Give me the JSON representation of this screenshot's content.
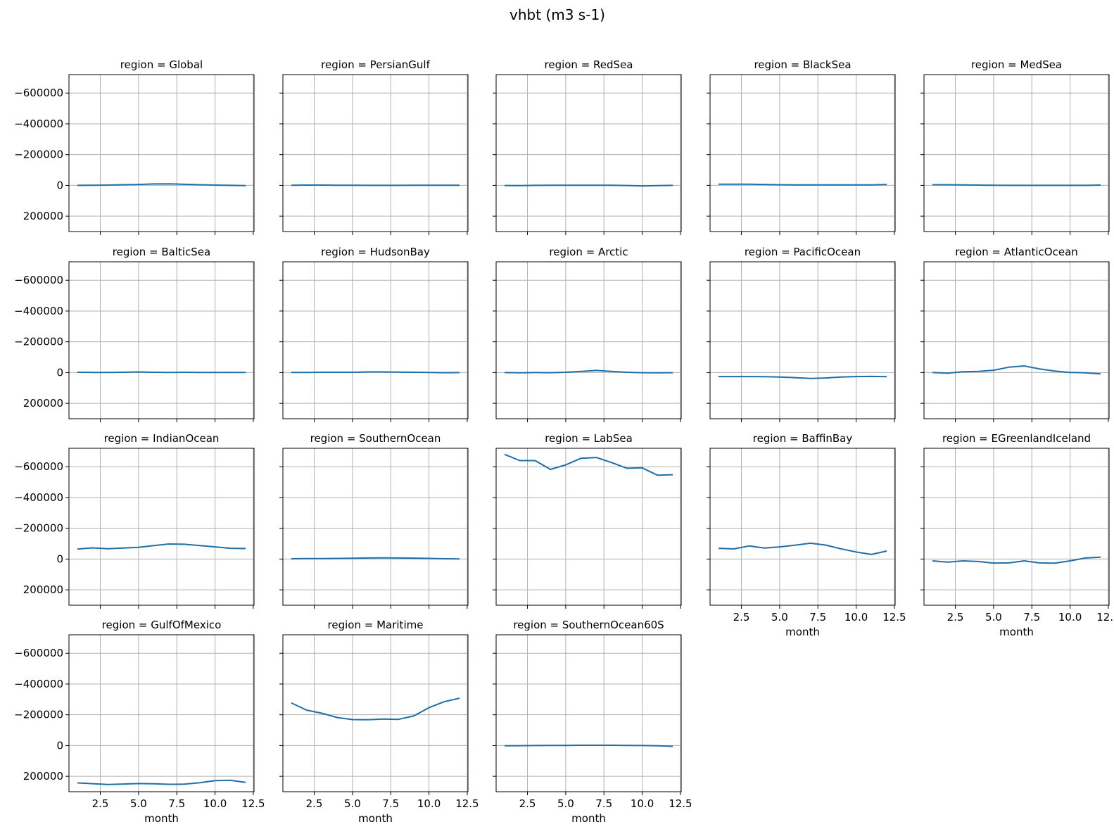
{
  "chart_data": {
    "type": "line",
    "title": "vhbt (m3 s-1)",
    "xlabel": "month",
    "ylabel": "",
    "xlim": [
      0.45,
      12.55
    ],
    "ylim": [
      300000,
      -720000
    ],
    "y_inverted": true,
    "grid": true,
    "xticks": [
      2.5,
      5.0,
      7.5,
      10.0,
      12.5
    ],
    "xtick_labels": [
      "2.5",
      "5.0",
      "7.5",
      "10.0",
      "12.5"
    ],
    "yticks": [
      -600000,
      -400000,
      -200000,
      0,
      200000
    ],
    "ytick_labels": [
      "−600000",
      "−400000",
      "−200000",
      "0",
      "200000"
    ],
    "x": [
      1,
      2,
      3,
      4,
      5,
      6,
      7,
      8,
      9,
      10,
      11,
      12
    ],
    "panels": [
      {
        "title": "region = Global",
        "values": [
          0,
          -1000,
          -2000,
          -4000,
          -6000,
          -9000,
          -10000,
          -7000,
          -4000,
          -2000,
          0,
          2000
        ]
      },
      {
        "title": "region = PersianGulf",
        "values": [
          -1000,
          -2000,
          -2000,
          -1000,
          -1000,
          0,
          0,
          0,
          -1000,
          -1000,
          -1000,
          -1000
        ]
      },
      {
        "title": "region = RedSea",
        "values": [
          1000,
          2000,
          0,
          -1000,
          -1000,
          -1000,
          -1000,
          -1000,
          1000,
          4000,
          2000,
          0
        ]
      },
      {
        "title": "region = BlackSea",
        "values": [
          -8000,
          -8000,
          -8000,
          -6000,
          -4000,
          -3000,
          -3000,
          -3000,
          -3000,
          -3000,
          -3000,
          -6000
        ]
      },
      {
        "title": "region = MedSea",
        "values": [
          -4000,
          -4000,
          -3000,
          -2000,
          -1000,
          0,
          0,
          0,
          0,
          0,
          0,
          -2000
        ]
      },
      {
        "title": "region = BalticSea",
        "values": [
          -2000,
          -1000,
          -1000,
          -2000,
          -4000,
          -2000,
          -1000,
          -2000,
          -1000,
          -1000,
          -1000,
          -1000
        ]
      },
      {
        "title": "region = HudsonBay",
        "values": [
          -1000,
          -1000,
          -2000,
          -2000,
          -2000,
          -4000,
          -4000,
          -3000,
          -2000,
          -1000,
          1000,
          0
        ]
      },
      {
        "title": "region = Arctic",
        "values": [
          0,
          2000,
          0,
          1000,
          -2000,
          -8000,
          -14000,
          -8000,
          -2000,
          1000,
          2000,
          1000
        ]
      },
      {
        "title": "region = PacificOcean",
        "values": [
          26000,
          26000,
          26000,
          27000,
          29000,
          33000,
          38000,
          35000,
          29000,
          26000,
          25000,
          27000
        ]
      },
      {
        "title": "region = AtlanticOcean",
        "values": [
          0,
          4000,
          -5000,
          -8000,
          -15000,
          -35000,
          -43000,
          -24000,
          -10000,
          -1000,
          2000,
          8000
        ]
      },
      {
        "title": "region = IndianOcean",
        "values": [
          -65000,
          -73000,
          -67000,
          -72000,
          -76000,
          -88000,
          -98000,
          -96000,
          -88000,
          -79000,
          -70000,
          -68000
        ]
      },
      {
        "title": "region = SouthernOcean",
        "values": [
          -2000,
          -3000,
          -3000,
          -4000,
          -5000,
          -7000,
          -8000,
          -7000,
          -6000,
          -4000,
          -2000,
          -1000
        ]
      },
      {
        "title": "region = LabSea",
        "values": [
          -680000,
          -640000,
          -640000,
          -583000,
          -612000,
          -655000,
          -660000,
          -627000,
          -590000,
          -593000,
          -545000,
          -548000
        ]
      },
      {
        "title": "region = BaffinBay",
        "values": [
          -70000,
          -66000,
          -85000,
          -72000,
          -79000,
          -90000,
          -103000,
          -91000,
          -67000,
          -46000,
          -30000,
          -52000
        ]
      },
      {
        "title": "region = EGreenlandIceland",
        "values": [
          12000,
          20000,
          12000,
          16000,
          26000,
          25000,
          12000,
          25000,
          27000,
          12000,
          -7000,
          -12000
        ]
      },
      {
        "title": "region = GulfOfMexico",
        "values": [
          243000,
          248000,
          253000,
          250000,
          247000,
          249000,
          252000,
          251000,
          242000,
          228000,
          226000,
          239000
        ]
      },
      {
        "title": "region = Maritime",
        "values": [
          -277000,
          -230000,
          -210000,
          -182000,
          -169000,
          -168000,
          -172000,
          -170000,
          -192000,
          -246000,
          -285000,
          -308000
        ]
      },
      {
        "title": "region = SouthernOcean60S",
        "values": [
          2000,
          1000,
          0,
          -1000,
          -1000,
          -2000,
          -2000,
          -2000,
          -1000,
          0,
          2000,
          5000
        ]
      }
    ]
  }
}
